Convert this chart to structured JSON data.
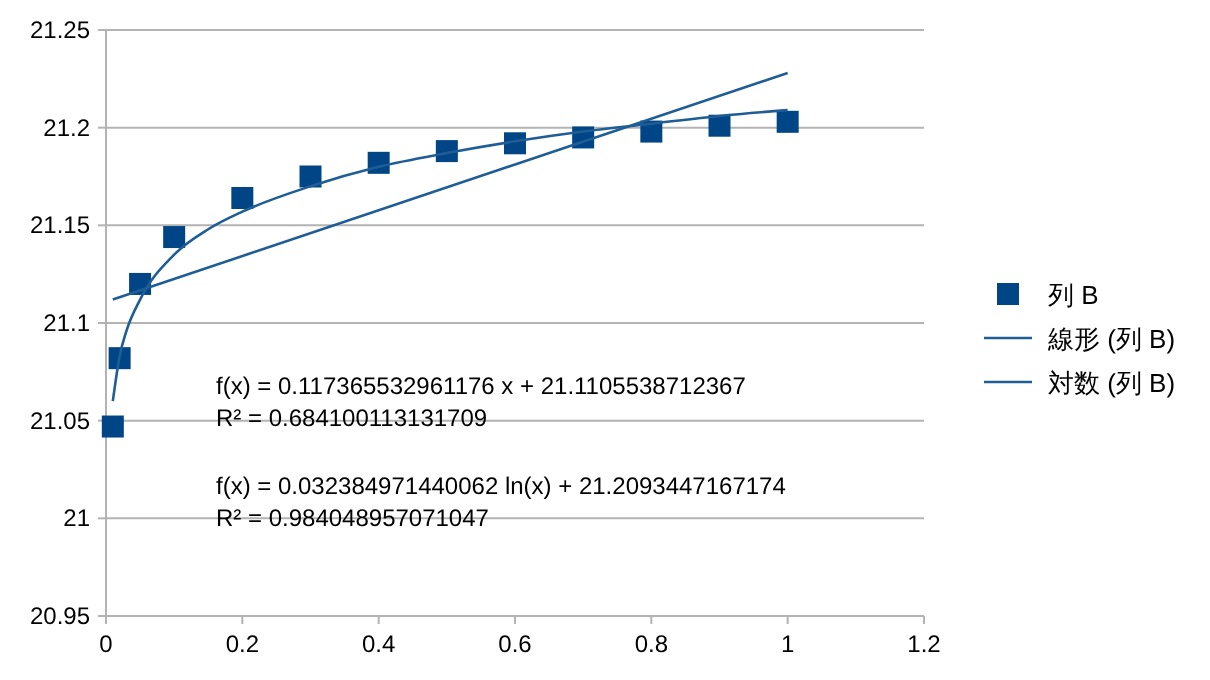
{
  "chart_data": {
    "type": "scatter",
    "xlim": [
      0,
      1.2
    ],
    "xticks": [
      0,
      0.2,
      0.4,
      0.6,
      0.8,
      1,
      1.2
    ],
    "ylim": [
      20.95,
      21.25
    ],
    "yticks": [
      20.95,
      21,
      21.05,
      21.1,
      21.15,
      21.2,
      21.25
    ],
    "grid": "y",
    "legend": "right",
    "line_style": "solid",
    "series": [
      {
        "name": "列 B",
        "marker": "square",
        "color": "#004586",
        "x": [
          0.01,
          0.02,
          0.05,
          0.1,
          0.2,
          0.3,
          0.4,
          0.5,
          0.6,
          0.7,
          0.8,
          0.9,
          1
        ],
        "values": [
          21.047,
          21.082,
          21.12,
          21.144,
          21.164,
          21.175,
          21.182,
          21.188,
          21.192,
          21.195,
          21.198,
          21.201,
          21.203
        ]
      },
      {
        "name": "線形 (列 B)",
        "type": "line",
        "marker": "none",
        "color": "#1f5d96",
        "x": [
          0.01,
          1
        ],
        "values": [
          21.112,
          21.228
        ]
      },
      {
        "name": "対数 (列 B)",
        "type": "line",
        "marker": "none",
        "color": "#1f5d96",
        "x": [
          0.01,
          0.02,
          0.03,
          0.05,
          0.1,
          0.15,
          0.2,
          0.3,
          0.4,
          0.5,
          0.6,
          0.7,
          0.8,
          0.9,
          1
        ],
        "values": [
          21.06,
          21.083,
          21.096,
          21.112,
          21.135,
          21.148,
          21.157,
          21.17,
          21.18,
          21.187,
          21.193,
          21.198,
          21.202,
          21.206,
          21.209
        ]
      }
    ],
    "annotations": [
      "f(x) = 0.117365532961176 x + 21.1105538712367",
      "R² = 0.684100113131709",
      "f(x) = 0.032384971440062 ln(x) + 21.2093447167174",
      "R² = 0.984048957071047"
    ]
  }
}
